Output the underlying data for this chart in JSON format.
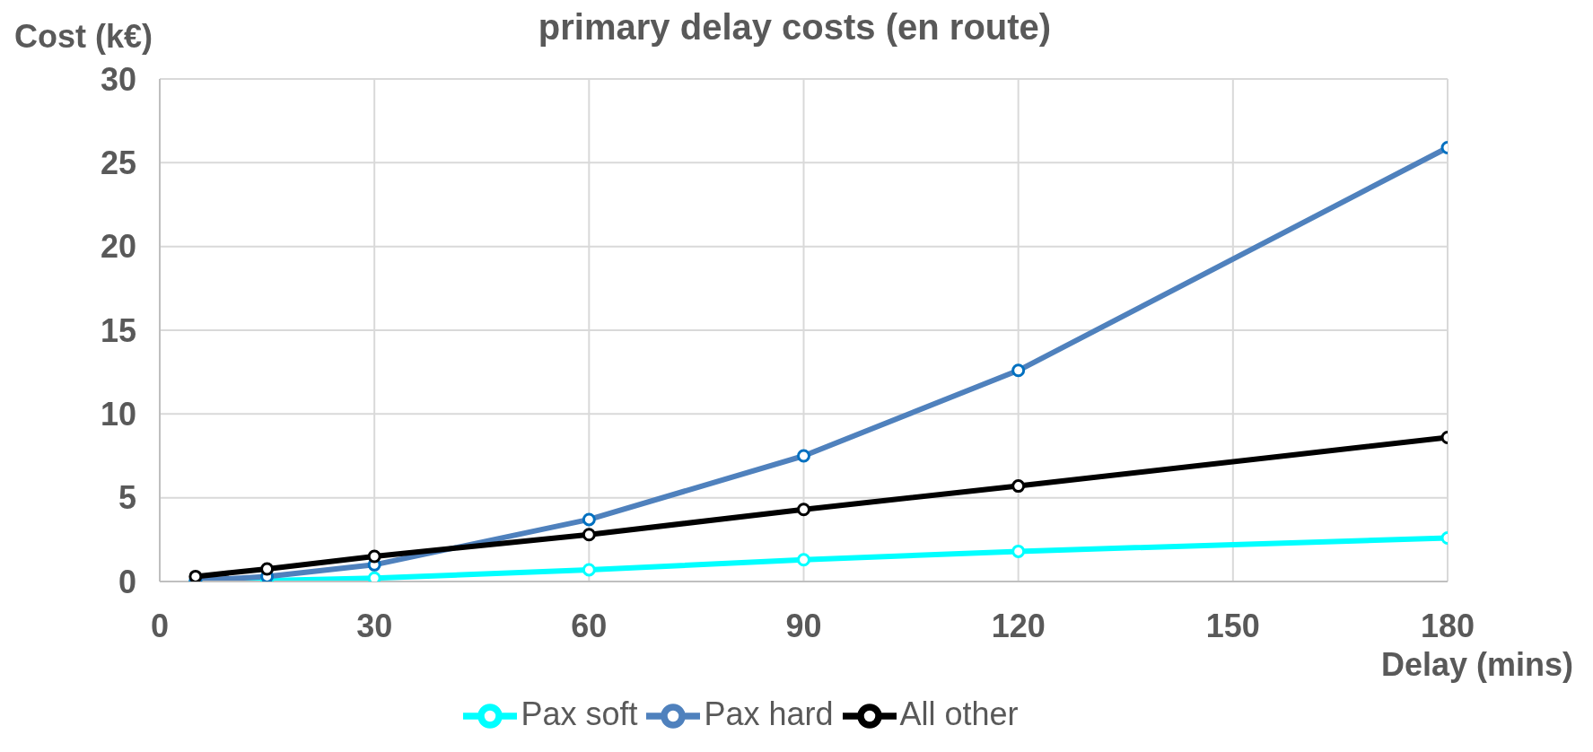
{
  "chart_data": {
    "type": "line",
    "title": "primary delay costs (en route)",
    "xlabel": "Delay (mins)",
    "ylabel": "Cost (k€)",
    "x": [
      5,
      15,
      30,
      60,
      90,
      120,
      180
    ],
    "series": [
      {
        "name": "Pax soft",
        "color": "#00ffff",
        "values": [
          0,
          0.05,
          0.2,
          0.7,
          1.3,
          1.8,
          2.6
        ]
      },
      {
        "name": "Pax hard",
        "color": "#4f81bd",
        "values": [
          0.05,
          0.3,
          1.0,
          3.7,
          7.5,
          12.6,
          25.9
        ]
      },
      {
        "name": "All other",
        "color": "#000000",
        "values": [
          0.3,
          0.75,
          1.5,
          2.8,
          4.3,
          5.7,
          8.6
        ]
      }
    ],
    "xlim": [
      0,
      180
    ],
    "xticks": [
      0,
      30,
      60,
      90,
      120,
      150,
      180
    ],
    "ylim": [
      0,
      30
    ],
    "yticks": [
      0,
      5,
      10,
      15,
      20,
      25,
      30
    ],
    "grid": true,
    "legend": "bottom",
    "marker": "circle",
    "line_style": "solid"
  }
}
